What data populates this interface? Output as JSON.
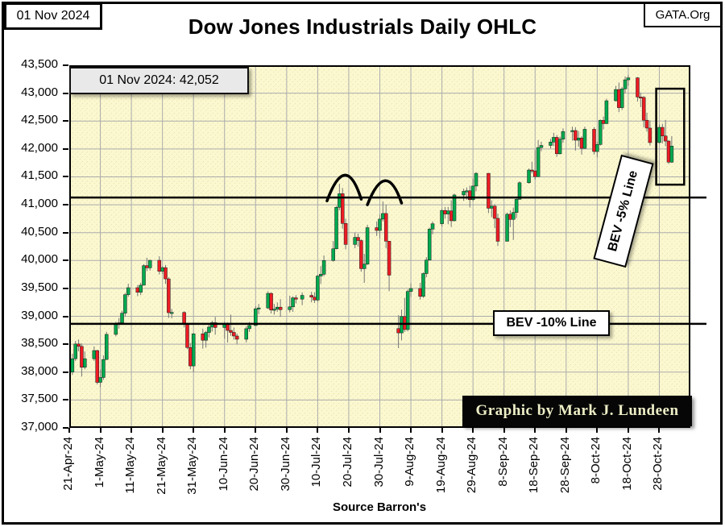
{
  "header": {
    "date_box": "01 Nov 2024",
    "site_box": "GATA.Org",
    "title": "Dow Jones Industrials Daily OHLC"
  },
  "annotations": {
    "note": "01 Nov 2024:  42,052",
    "bev5_label": "BEV -5% Line",
    "bev10_label": "BEV -10% Line",
    "credit": "Graphic by Mark J. Lundeen",
    "source": "Source Barron's"
  },
  "colors": {
    "up": "#00A94E",
    "down": "#EC1C24",
    "background": "#FBF8D0",
    "speckle": "#E8E3AC",
    "grid": "#ABABAB",
    "wick": "#757575",
    "line": "#000000"
  },
  "chart_data": {
    "type": "ohlc-candlestick",
    "title": "Dow Jones Industrials Daily OHLC",
    "ylabel": "",
    "xlabel": "",
    "ylim": [
      37000,
      43500
    ],
    "ytick_step": 500,
    "grid": true,
    "x_domain_days": [
      "2024-04-21",
      "2024-11-07"
    ],
    "xticks": [
      [
        "2024-04-21",
        "21-Apr-24"
      ],
      [
        "2024-05-01",
        "1-May-24"
      ],
      [
        "2024-05-11",
        "11-May-24"
      ],
      [
        "2024-05-21",
        "21-May-24"
      ],
      [
        "2024-05-31",
        "31-May-24"
      ],
      [
        "2024-06-10",
        "10-Jun-24"
      ],
      [
        "2024-06-20",
        "20-Jun-24"
      ],
      [
        "2024-06-30",
        "30-Jun-24"
      ],
      [
        "2024-07-10",
        "10-Jul-24"
      ],
      [
        "2024-07-20",
        "20-Jul-24"
      ],
      [
        "2024-07-30",
        "30-Jul-24"
      ],
      [
        "2024-08-09",
        "9-Aug-24"
      ],
      [
        "2024-08-19",
        "19-Aug-24"
      ],
      [
        "2024-08-29",
        "29-Aug-24"
      ],
      [
        "2024-09-08",
        "8-Sep-24"
      ],
      [
        "2024-09-18",
        "18-Sep-24"
      ],
      [
        "2024-09-28",
        "28-Sep-24"
      ],
      [
        "2024-10-08",
        "8-Oct-24"
      ],
      [
        "2024-10-18",
        "18-Oct-24"
      ],
      [
        "2024-10-28",
        "28-Oct-24"
      ]
    ],
    "hlines": [
      {
        "value": 41130,
        "label": "BEV -5% Line"
      },
      {
        "value": 38865,
        "label": "BEV -10% Line"
      }
    ],
    "last_point": {
      "date": "2024-11-01",
      "close": 42052
    },
    "highlight_box": {
      "date_start": "2024-10-27",
      "date_end": "2024-11-05",
      "price_top": 43080,
      "price_bottom": 41360
    },
    "double_top_arcs": [
      {
        "x1_date": "2024-07-13",
        "y1": 41070,
        "apex_date": "2024-07-19",
        "apex": 41530,
        "x2_date": "2024-07-24",
        "y2": 41100
      },
      {
        "x1_date": "2024-07-26",
        "y1": 41000,
        "apex_date": "2024-08-01",
        "apex": 41430,
        "x2_date": "2024-08-06",
        "y2": 41030
      }
    ],
    "ohlc_columns": [
      "date",
      "open",
      "high",
      "low",
      "close"
    ],
    "ohlc": [
      [
        "2024-04-22",
        38000,
        38330,
        37950,
        38240
      ],
      [
        "2024-04-23",
        38240,
        38560,
        38200,
        38504
      ],
      [
        "2024-04-24",
        38504,
        38585,
        38370,
        38461
      ],
      [
        "2024-04-25",
        38461,
        38515,
        37920,
        38086
      ],
      [
        "2024-04-26",
        38086,
        38370,
        38050,
        38240
      ],
      [
        "2024-04-29",
        38240,
        38460,
        38200,
        38386
      ],
      [
        "2024-04-30",
        38386,
        38400,
        37780,
        37816
      ],
      [
        "2024-05-01",
        37816,
        38050,
        37730,
        37903
      ],
      [
        "2024-05-02",
        37903,
        38300,
        37860,
        38226
      ],
      [
        "2024-05-03",
        38226,
        38720,
        38220,
        38676
      ],
      [
        "2024-05-06",
        38676,
        38900,
        38640,
        38852
      ],
      [
        "2024-05-07",
        38852,
        38970,
        38780,
        38884
      ],
      [
        "2024-05-08",
        38884,
        39100,
        38850,
        39056
      ],
      [
        "2024-05-09",
        39056,
        39420,
        39000,
        39388
      ],
      [
        "2024-05-10",
        39388,
        39585,
        39350,
        39513
      ],
      [
        "2024-05-13",
        39513,
        39560,
        39360,
        39431
      ],
      [
        "2024-05-14",
        39431,
        39600,
        39380,
        39558
      ],
      [
        "2024-05-15",
        39558,
        39935,
        39550,
        39908
      ],
      [
        "2024-05-16",
        39908,
        40050,
        39810,
        39869
      ],
      [
        "2024-05-17",
        39869,
        40010,
        39820,
        40004
      ],
      [
        "2024-05-20",
        40004,
        40077,
        39750,
        39807
      ],
      [
        "2024-05-21",
        39807,
        39900,
        39760,
        39873
      ],
      [
        "2024-05-22",
        39873,
        39920,
        39580,
        39671
      ],
      [
        "2024-05-23",
        39671,
        39700,
        38970,
        39065
      ],
      [
        "2024-05-24",
        39065,
        39130,
        38965,
        39070
      ],
      [
        "2024-05-28",
        39070,
        39090,
        38800,
        38853
      ],
      [
        "2024-05-29",
        38853,
        38860,
        38410,
        38441
      ],
      [
        "2024-05-30",
        38441,
        38520,
        38050,
        38111
      ],
      [
        "2024-05-31",
        38111,
        38700,
        38000,
        38686
      ],
      [
        "2024-06-03",
        38686,
        38780,
        38420,
        38571
      ],
      [
        "2024-06-04",
        38571,
        38740,
        38440,
        38711
      ],
      [
        "2024-06-05",
        38711,
        38850,
        38620,
        38807
      ],
      [
        "2024-06-06",
        38807,
        38920,
        38730,
        38886
      ],
      [
        "2024-06-07",
        38886,
        38990,
        38670,
        38799
      ],
      [
        "2024-06-10",
        38799,
        38900,
        38600,
        38868
      ],
      [
        "2024-06-11",
        38868,
        38890,
        38530,
        38747
      ],
      [
        "2024-06-12",
        38747,
        39030,
        38650,
        38712
      ],
      [
        "2024-06-13",
        38712,
        38800,
        38580,
        38647
      ],
      [
        "2024-06-14",
        38647,
        38690,
        38500,
        38589
      ],
      [
        "2024-06-17",
        38589,
        38820,
        38530,
        38778
      ],
      [
        "2024-06-18",
        38778,
        38900,
        38720,
        38835
      ],
      [
        "2024-06-20",
        38835,
        39180,
        38830,
        39135
      ],
      [
        "2024-06-21",
        39135,
        39220,
        39040,
        39150
      ],
      [
        "2024-06-24",
        39150,
        39450,
        39130,
        39411
      ],
      [
        "2024-06-25",
        39411,
        39430,
        39050,
        39112
      ],
      [
        "2024-06-26",
        39112,
        39220,
        39030,
        39128
      ],
      [
        "2024-06-27",
        39128,
        39250,
        39080,
        39164
      ],
      [
        "2024-06-28",
        39164,
        39310,
        38990,
        39119
      ],
      [
        "2024-07-01",
        39119,
        39370,
        39070,
        39170
      ],
      [
        "2024-07-02",
        39170,
        39360,
        39080,
        39331
      ],
      [
        "2024-07-03",
        39331,
        39380,
        39230,
        39308
      ],
      [
        "2024-07-05",
        39308,
        39430,
        39200,
        39376
      ],
      [
        "2024-07-08",
        39376,
        39440,
        39250,
        39344
      ],
      [
        "2024-07-09",
        39344,
        39430,
        39240,
        39292
      ],
      [
        "2024-07-10",
        39292,
        39740,
        39260,
        39722
      ],
      [
        "2024-07-11",
        39722,
        39900,
        39580,
        39754
      ],
      [
        "2024-07-12",
        39754,
        40090,
        39720,
        40001
      ],
      [
        "2024-07-15",
        40001,
        40350,
        39980,
        40211
      ],
      [
        "2024-07-16",
        40211,
        40980,
        40200,
        40954
      ],
      [
        "2024-07-17",
        40954,
        41376,
        40900,
        41198
      ],
      [
        "2024-07-18",
        41198,
        41300,
        40570,
        40665
      ],
      [
        "2024-07-19",
        40665,
        40750,
        40200,
        40288
      ],
      [
        "2024-07-22",
        40288,
        40500,
        40220,
        40415
      ],
      [
        "2024-07-23",
        40415,
        40480,
        40250,
        40358
      ],
      [
        "2024-07-24",
        40358,
        40380,
        39800,
        39854
      ],
      [
        "2024-07-25",
        39854,
        40120,
        39600,
        39935
      ],
      [
        "2024-07-26",
        39935,
        40640,
        39920,
        40589
      ],
      [
        "2024-07-29",
        40589,
        40700,
        40440,
        40539
      ],
      [
        "2024-07-30",
        40539,
        40820,
        40400,
        40743
      ],
      [
        "2024-07-31",
        40743,
        41060,
        40700,
        40843
      ],
      [
        "2024-08-01",
        40843,
        41000,
        40220,
        40347
      ],
      [
        "2024-08-02",
        40347,
        40350,
        39450,
        39737
      ],
      [
        "2024-08-05",
        38780,
        39020,
        38430,
        38703
      ],
      [
        "2024-08-06",
        38703,
        39120,
        38570,
        38997
      ],
      [
        "2024-08-07",
        38997,
        39330,
        38720,
        38763
      ],
      [
        "2024-08-08",
        38763,
        39480,
        38730,
        39446
      ],
      [
        "2024-08-09",
        39446,
        39590,
        39350,
        39498
      ],
      [
        "2024-08-12",
        39498,
        39600,
        39300,
        39357
      ],
      [
        "2024-08-13",
        39357,
        39790,
        39330,
        39766
      ],
      [
        "2024-08-14",
        39766,
        40060,
        39700,
        40008
      ],
      [
        "2024-08-15",
        40008,
        40590,
        40000,
        40563
      ],
      [
        "2024-08-16",
        40563,
        40700,
        40470,
        40660
      ],
      [
        "2024-08-19",
        40660,
        40930,
        40610,
        40897
      ],
      [
        "2024-08-20",
        40897,
        40960,
        40750,
        40834
      ],
      [
        "2024-08-21",
        40834,
        40960,
        40650,
        40890
      ],
      [
        "2024-08-22",
        40890,
        41080,
        40600,
        40713
      ],
      [
        "2024-08-23",
        40713,
        41200,
        40700,
        41175
      ],
      [
        "2024-08-26",
        41175,
        41290,
        41070,
        41240
      ],
      [
        "2024-08-27",
        41240,
        41310,
        41090,
        41250
      ],
      [
        "2024-08-28",
        41250,
        41340,
        40950,
        41091
      ],
      [
        "2024-08-29",
        41091,
        41470,
        41060,
        41335
      ],
      [
        "2024-08-30",
        41335,
        41585,
        41240,
        41563
      ],
      [
        "2024-09-03",
        41563,
        41570,
        40850,
        40937
      ],
      [
        "2024-09-04",
        40937,
        41080,
        40780,
        40975
      ],
      [
        "2024-09-05",
        40975,
        41010,
        40580,
        40756
      ],
      [
        "2024-09-06",
        40756,
        40840,
        40260,
        40345
      ],
      [
        "2024-09-09",
        40345,
        40860,
        40340,
        40830
      ],
      [
        "2024-09-10",
        40830,
        40900,
        40600,
        40737
      ],
      [
        "2024-09-11",
        40737,
        40950,
        40370,
        40861
      ],
      [
        "2024-09-12",
        40861,
        41130,
        40760,
        41097
      ],
      [
        "2024-09-13",
        41097,
        41420,
        41090,
        41394
      ],
      [
        "2024-09-16",
        41394,
        41650,
        41380,
        41622
      ],
      [
        "2024-09-17",
        41622,
        41770,
        41560,
        41606
      ],
      [
        "2024-09-18",
        41606,
        41980,
        41450,
        41503
      ],
      [
        "2024-09-19",
        41503,
        42160,
        41500,
        42025
      ],
      [
        "2024-09-20",
        42025,
        42130,
        41960,
        42063
      ],
      [
        "2024-09-23",
        42063,
        42180,
        42010,
        42124
      ],
      [
        "2024-09-24",
        42124,
        42290,
        42050,
        42208
      ],
      [
        "2024-09-25",
        42208,
        42250,
        41860,
        41914
      ],
      [
        "2024-09-26",
        41914,
        42220,
        41900,
        42175
      ],
      [
        "2024-09-27",
        42175,
        42370,
        42110,
        42313
      ],
      [
        "2024-09-30",
        42313,
        42400,
        42150,
        42330
      ],
      [
        "2024-10-01",
        42330,
        42390,
        41970,
        42157
      ],
      [
        "2024-10-02",
        42157,
        42320,
        42040,
        42196
      ],
      [
        "2024-10-03",
        42196,
        42230,
        41900,
        42011
      ],
      [
        "2024-10-04",
        42011,
        42400,
        42000,
        42353
      ],
      [
        "2024-10-07",
        42353,
        42390,
        41900,
        41954
      ],
      [
        "2024-10-08",
        41954,
        42130,
        41850,
        42080
      ],
      [
        "2024-10-09",
        42080,
        42530,
        42060,
        42512
      ],
      [
        "2024-10-10",
        42512,
        42580,
        42350,
        42454
      ],
      [
        "2024-10-11",
        42454,
        42900,
        42450,
        42864
      ],
      [
        "2024-10-14",
        42864,
        43130,
        42850,
        43065
      ],
      [
        "2024-10-15",
        43065,
        43190,
        42660,
        42740
      ],
      [
        "2024-10-16",
        42740,
        43110,
        42700,
        43077
      ],
      [
        "2024-10-17",
        43077,
        43300,
        43000,
        43239
      ],
      [
        "2024-10-18",
        43239,
        43325,
        43130,
        43275
      ],
      [
        "2024-10-21",
        43275,
        43290,
        42850,
        42931
      ],
      [
        "2024-10-22",
        42931,
        43010,
        42750,
        42924
      ],
      [
        "2024-10-23",
        42924,
        42950,
        42390,
        42515
      ],
      [
        "2024-10-24",
        42515,
        42650,
        42310,
        42374
      ],
      [
        "2024-10-25",
        42374,
        42510,
        42060,
        42114
      ],
      [
        "2024-10-28",
        42114,
        42440,
        42100,
        42387
      ],
      [
        "2024-10-29",
        42387,
        42450,
        42100,
        42233
      ],
      [
        "2024-10-30",
        42233,
        42520,
        42050,
        42141
      ],
      [
        "2024-10-31",
        42141,
        42160,
        41730,
        41763
      ],
      [
        "2024-11-01",
        41763,
        42230,
        41750,
        42052
      ]
    ]
  }
}
